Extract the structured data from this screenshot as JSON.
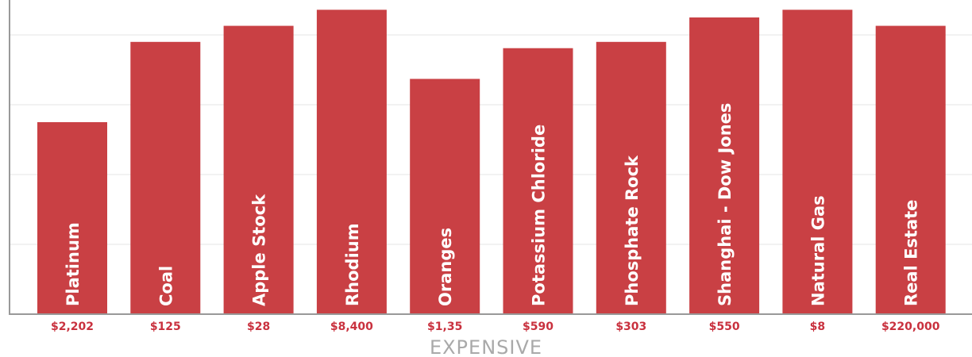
{
  "chart_data": {
    "type": "bar",
    "xlabel": "EXPENSIVE",
    "ylabel": "",
    "title": "",
    "ylim": [
      0,
      4.4
    ],
    "grid": true,
    "bar_color": "#c94044",
    "label_color": "#c9313e",
    "axis_color": "#999999",
    "grid_color": "#e4e4e4",
    "categories": [
      "Platinum",
      "Coal",
      "Apple Stock",
      "Rhodium",
      "Oranges",
      "Potassium Chloride",
      "Phosphate Rock",
      "Shanghai - Dow Jones",
      "Natural Gas",
      "Real Estate"
    ],
    "price_labels": [
      "$2,202",
      "$125",
      "$28",
      "$8,400",
      "$1,35",
      "$590",
      "$303",
      "$550",
      "$8",
      "$220,000"
    ],
    "values": [
      2.75,
      3.9,
      4.13,
      4.36,
      3.37,
      3.81,
      3.9,
      4.25,
      4.36,
      4.13
    ]
  }
}
